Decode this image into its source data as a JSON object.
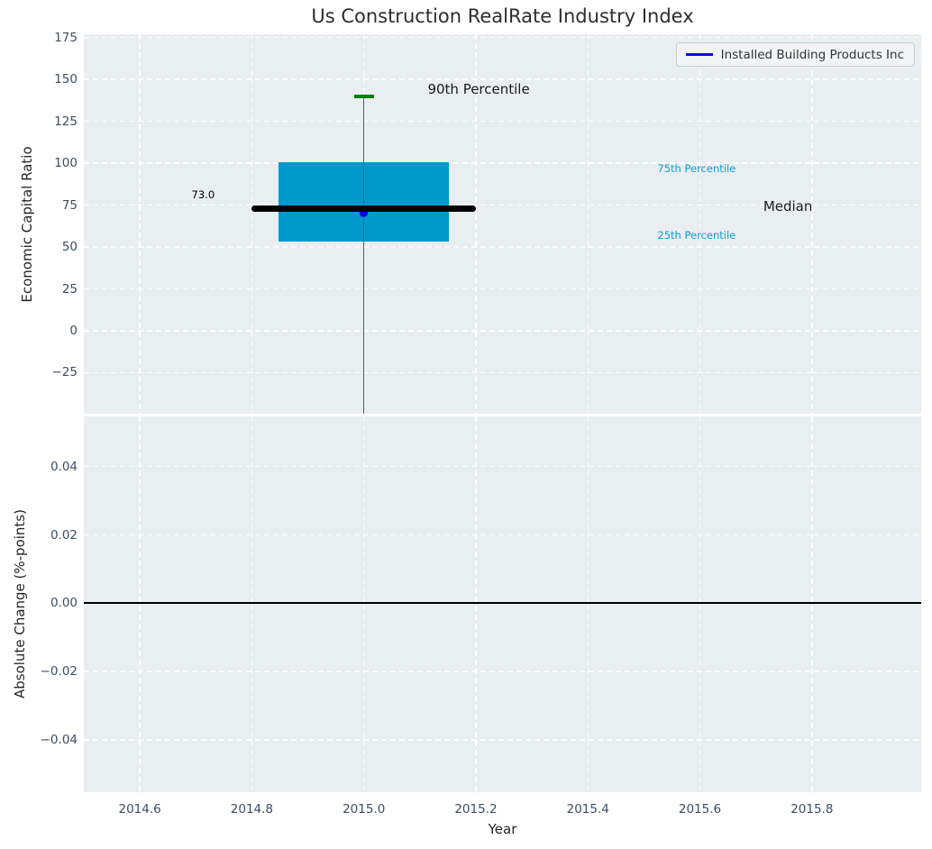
{
  "title": "Us Construction RealRate Industry Index",
  "legend": {
    "label": "Installed Building Products Inc",
    "line_color": "#0b0be6"
  },
  "colors": {
    "plot_bg": "#e9eef0",
    "grid": "#ffffff",
    "tick_label": "#3d4c63",
    "box_fill": "#0099cc",
    "median_line": "#000000",
    "percentile90_tick": "#008000",
    "whisker": "#5a5a5a",
    "dot": "#0000dd",
    "cyan_label": "#0f9ed1",
    "zero_line": "#000000"
  },
  "chart_data": [
    {
      "type": "box",
      "title": "Us Construction RealRate Industry Index",
      "ylabel": "Economic Capital Ratio",
      "xlim": [
        2014.5,
        2015.995
      ],
      "ylim": [
        -49.5,
        177
      ],
      "grid": true,
      "legend_position": "upper right",
      "yticks": [
        175,
        150,
        125,
        100,
        75,
        50,
        25,
        0,
        -25
      ],
      "ytick_labels": [
        "175",
        "150",
        "125",
        "100",
        "75",
        "50",
        "25",
        "0",
        "−25"
      ],
      "xticks": [
        2014.6,
        2014.8,
        2015.0,
        2015.2,
        2015.4,
        2015.6,
        2015.8
      ],
      "box": {
        "x_center": 2015.0,
        "box_half_width": 0.152,
        "q25": 53,
        "q75": 100.5,
        "median": 73.0,
        "median_half_width": 0.2,
        "p90": 140,
        "p90_half_width": 0.018,
        "whisker_low": -49.5
      },
      "series": [
        {
          "name": "Installed Building Products Inc",
          "x": [
            2015.0
          ],
          "y": [
            70
          ],
          "marker": "dot"
        }
      ],
      "annotations": [
        {
          "text": "73.0",
          "x": 2014.713,
          "y": 81,
          "color": "#000000",
          "size": 11.5
        },
        {
          "text": "90th Percentile",
          "x": 2015.205,
          "y": 144.2,
          "color": "#1a1a1a",
          "size": 15
        },
        {
          "text": "75th Percentile",
          "x": 2015.594,
          "y": 97,
          "color": "#0f9ed1",
          "size": 11.5
        },
        {
          "text": "Median",
          "x": 2015.757,
          "y": 74,
          "color": "#1a1a1a",
          "size": 15
        },
        {
          "text": "25th Percentile",
          "x": 2015.594,
          "y": 57,
          "color": "#0f9ed1",
          "size": 11.5
        }
      ]
    },
    {
      "type": "line",
      "ylabel": "Absolute Change (%-points)",
      "xlabel": "Year",
      "xlim": [
        2014.5,
        2015.995
      ],
      "ylim": [
        -0.0553,
        0.0547
      ],
      "grid": true,
      "yticks": [
        0.04,
        0.02,
        0,
        -0.02,
        -0.04
      ],
      "ytick_labels": [
        "0.04",
        "0.02",
        "0.00",
        "−0.02",
        "−0.04"
      ],
      "xticks": [
        2014.6,
        2014.8,
        2015.0,
        2015.2,
        2015.4,
        2015.6,
        2015.8
      ],
      "xtick_labels": [
        "2014.6",
        "2014.8",
        "2015.0",
        "2015.2",
        "2015.4",
        "2015.6",
        "2015.8"
      ],
      "zero_line": 0.0,
      "series": []
    }
  ]
}
